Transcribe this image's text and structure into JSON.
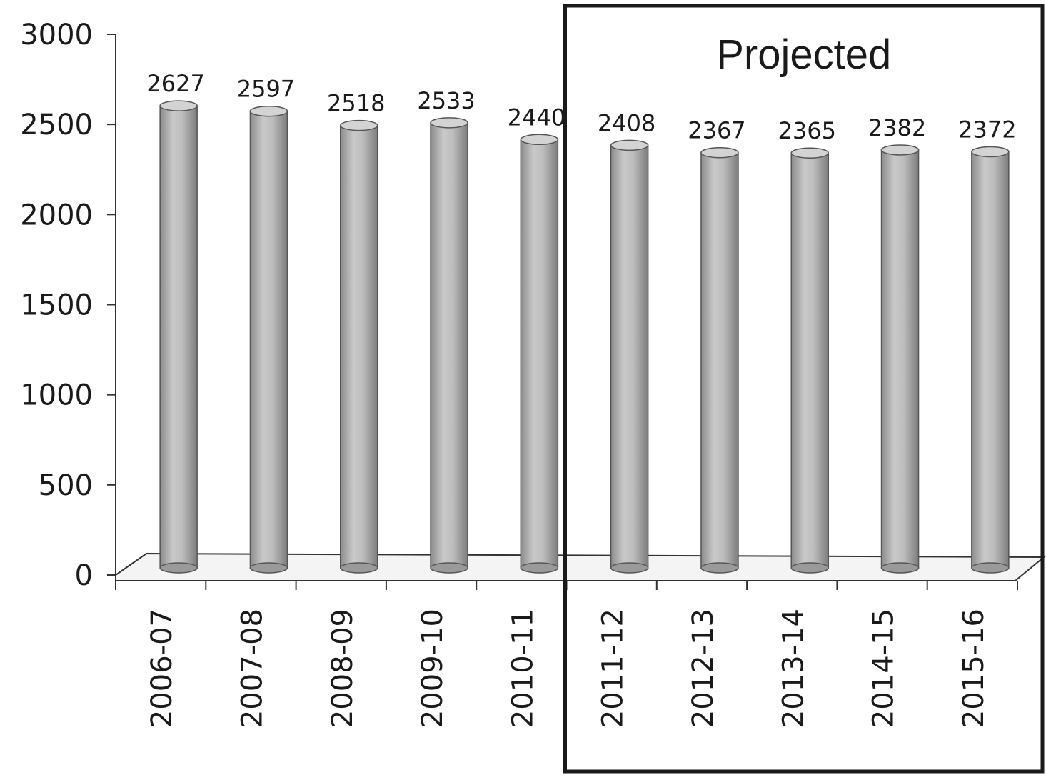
{
  "chart_data": {
    "type": "bar",
    "title": "",
    "xlabel": "",
    "ylabel": "",
    "categories": [
      "2006-07",
      "2007-08",
      "2008-09",
      "2009-10",
      "2010-11",
      "2011-12",
      "2012-13",
      "2013-14",
      "2014-15",
      "2015-16"
    ],
    "values": [
      2627,
      2597,
      2518,
      2533,
      2440,
      2408,
      2367,
      2365,
      2382,
      2372
    ],
    "ylim": [
      0,
      3000
    ],
    "yticks": [
      "0",
      "500",
      "1000",
      "1500",
      "2000",
      "2500",
      "3000"
    ],
    "grid": false,
    "bar_shape": "cylinder",
    "bar_color": "#b5b5b5",
    "annotation": {
      "text": "Projected",
      "categories": [
        "2011-12",
        "2012-13",
        "2013-14",
        "2014-15",
        "2015-16"
      ]
    }
  }
}
